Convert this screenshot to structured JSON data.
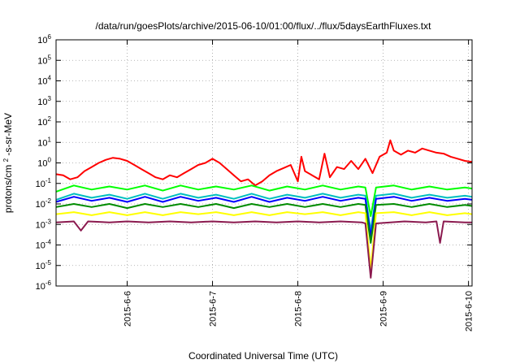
{
  "chart_data": {
    "type": "line",
    "title": "/data/run/goesPlots/archive/2015-06-10/01:00/flux/../flux/5daysEarthFluxes.txt",
    "xlabel": "Coordinated Universal Time (UTC)",
    "ylabel": "protons/cm²-s-sr-MeV",
    "ylabel_parts": [
      "protons/cm",
      "2",
      "-s-sr-MeV"
    ],
    "yscale": "log",
    "ylim_exponents": [
      -6,
      6
    ],
    "y_ticks": [
      {
        "base": "10",
        "exp": "6"
      },
      {
        "base": "10",
        "exp": "5"
      },
      {
        "base": "10",
        "exp": "4"
      },
      {
        "base": "10",
        "exp": "3"
      },
      {
        "base": "10",
        "exp": "2"
      },
      {
        "base": "10",
        "exp": "1"
      },
      {
        "base": "10",
        "exp": "0"
      },
      {
        "base": "10",
        "exp": "-1"
      },
      {
        "base": "10",
        "exp": "-2"
      },
      {
        "base": "10",
        "exp": "-3"
      },
      {
        "base": "10",
        "exp": "-4"
      },
      {
        "base": "10",
        "exp": "-5"
      },
      {
        "base": "10",
        "exp": "-6"
      }
    ],
    "xlim_days": [
      "2015-06-05 04:00",
      "2015-06-10 01:00"
    ],
    "x_ticks": [
      "2015-6-6",
      "2015-6-7",
      "2015-6-8",
      "2015-6-9",
      "2015-6-10"
    ],
    "grid": true,
    "series": [
      {
        "color": "#ff0000",
        "points": [
          [
            "2015-06-05 04:00",
            -0.55
          ],
          [
            "2015-06-05 06:00",
            -0.6
          ],
          [
            "2015-06-05 08:00",
            -0.8
          ],
          [
            "2015-06-05 10:00",
            -0.7
          ],
          [
            "2015-06-05 12:00",
            -0.4
          ],
          [
            "2015-06-05 14:00",
            -0.2
          ],
          [
            "2015-06-05 16:00",
            0.0
          ],
          [
            "2015-06-05 18:00",
            0.15
          ],
          [
            "2015-06-05 20:00",
            0.25
          ],
          [
            "2015-06-05 22:00",
            0.2
          ],
          [
            "2015-06-06 00:00",
            0.1
          ],
          [
            "2015-06-06 02:00",
            -0.1
          ],
          [
            "2015-06-06 04:00",
            -0.3
          ],
          [
            "2015-06-06 06:00",
            -0.5
          ],
          [
            "2015-06-06 08:00",
            -0.7
          ],
          [
            "2015-06-06 10:00",
            -0.8
          ],
          [
            "2015-06-06 12:00",
            -0.6
          ],
          [
            "2015-06-06 14:00",
            -0.7
          ],
          [
            "2015-06-06 16:00",
            -0.5
          ],
          [
            "2015-06-06 18:00",
            -0.3
          ],
          [
            "2015-06-06 20:00",
            -0.1
          ],
          [
            "2015-06-06 22:00",
            0.0
          ],
          [
            "2015-06-07 00:00",
            0.2
          ],
          [
            "2015-06-07 02:00",
            0.0
          ],
          [
            "2015-06-07 04:00",
            -0.3
          ],
          [
            "2015-06-07 06:00",
            -0.6
          ],
          [
            "2015-06-07 08:00",
            -0.9
          ],
          [
            "2015-06-07 10:00",
            -0.8
          ],
          [
            "2015-06-07 12:00",
            -1.1
          ],
          [
            "2015-06-07 14:00",
            -0.9
          ],
          [
            "2015-06-07 16:00",
            -0.6
          ],
          [
            "2015-06-07 18:00",
            -0.4
          ],
          [
            "2015-06-07 20:00",
            -0.25
          ],
          [
            "2015-06-07 22:00",
            -0.1
          ],
          [
            "2015-06-08 00:00",
            -0.9
          ],
          [
            "2015-06-08 01:00",
            0.3
          ],
          [
            "2015-06-08 02:00",
            -0.4
          ],
          [
            "2015-06-08 04:00",
            -0.6
          ],
          [
            "2015-06-08 06:00",
            -0.8
          ],
          [
            "2015-06-08 07:30",
            0.45
          ],
          [
            "2015-06-08 09:00",
            -0.7
          ],
          [
            "2015-06-08 11:00",
            -0.2
          ],
          [
            "2015-06-08 13:00",
            -0.3
          ],
          [
            "2015-06-08 15:00",
            0.1
          ],
          [
            "2015-06-08 17:00",
            -0.3
          ],
          [
            "2015-06-08 19:00",
            0.2
          ],
          [
            "2015-06-08 21:00",
            -0.5
          ],
          [
            "2015-06-08 23:00",
            0.3
          ],
          [
            "2015-06-09 01:00",
            0.5
          ],
          [
            "2015-06-09 02:00",
            1.1
          ],
          [
            "2015-06-09 03:00",
            0.6
          ],
          [
            "2015-06-09 05:00",
            0.4
          ],
          [
            "2015-06-09 07:00",
            0.6
          ],
          [
            "2015-06-09 09:00",
            0.5
          ],
          [
            "2015-06-09 11:00",
            0.7
          ],
          [
            "2015-06-09 13:00",
            0.6
          ],
          [
            "2015-06-09 15:00",
            0.5
          ],
          [
            "2015-06-09 17:00",
            0.45
          ],
          [
            "2015-06-09 19:00",
            0.3
          ],
          [
            "2015-06-09 21:00",
            0.2
          ],
          [
            "2015-06-09 23:00",
            0.1
          ],
          [
            "2015-06-10 01:00",
            0.05
          ]
        ]
      },
      {
        "color": "#00ff00",
        "points": [
          [
            "2015-06-05 04:00",
            -1.4
          ],
          [
            "2015-06-05 09:00",
            -1.1
          ],
          [
            "2015-06-05 14:00",
            -1.3
          ],
          [
            "2015-06-05 19:00",
            -1.15
          ],
          [
            "2015-06-06 00:00",
            -1.3
          ],
          [
            "2015-06-06 05:00",
            -1.1
          ],
          [
            "2015-06-06 10:00",
            -1.35
          ],
          [
            "2015-06-06 15:00",
            -1.1
          ],
          [
            "2015-06-06 20:00",
            -1.3
          ],
          [
            "2015-06-07 01:00",
            -1.15
          ],
          [
            "2015-06-07 06:00",
            -1.3
          ],
          [
            "2015-06-07 11:00",
            -1.1
          ],
          [
            "2015-06-07 16:00",
            -1.35
          ],
          [
            "2015-06-07 21:00",
            -1.15
          ],
          [
            "2015-06-08 02:00",
            -1.3
          ],
          [
            "2015-06-08 07:00",
            -1.1
          ],
          [
            "2015-06-08 12:00",
            -1.3
          ],
          [
            "2015-06-08 17:00",
            -1.15
          ],
          [
            "2015-06-08 19:00",
            -1.2
          ],
          [
            "2015-06-08 20:30",
            -2.6
          ],
          [
            "2015-06-08 22:00",
            -1.2
          ],
          [
            "2015-06-09 03:00",
            -1.1
          ],
          [
            "2015-06-09 08:00",
            -1.3
          ],
          [
            "2015-06-09 13:00",
            -1.15
          ],
          [
            "2015-06-09 18:00",
            -1.3
          ],
          [
            "2015-06-09 23:00",
            -1.2
          ],
          [
            "2015-06-10 01:00",
            -1.25
          ]
        ]
      },
      {
        "color": "#00bfbf",
        "points": [
          [
            "2015-06-05 04:00",
            -1.8
          ],
          [
            "2015-06-05 09:00",
            -1.5
          ],
          [
            "2015-06-05 14:00",
            -1.7
          ],
          [
            "2015-06-05 19:00",
            -1.55
          ],
          [
            "2015-06-06 00:00",
            -1.75
          ],
          [
            "2015-06-06 05:00",
            -1.5
          ],
          [
            "2015-06-06 10:00",
            -1.75
          ],
          [
            "2015-06-06 15:00",
            -1.5
          ],
          [
            "2015-06-06 20:00",
            -1.7
          ],
          [
            "2015-06-07 01:00",
            -1.55
          ],
          [
            "2015-06-07 06:00",
            -1.75
          ],
          [
            "2015-06-07 11:00",
            -1.5
          ],
          [
            "2015-06-07 16:00",
            -1.75
          ],
          [
            "2015-06-07 21:00",
            -1.55
          ],
          [
            "2015-06-08 02:00",
            -1.7
          ],
          [
            "2015-06-08 07:00",
            -1.5
          ],
          [
            "2015-06-08 12:00",
            -1.7
          ],
          [
            "2015-06-08 17:00",
            -1.55
          ],
          [
            "2015-06-08 19:00",
            -1.6
          ],
          [
            "2015-06-08 20:30",
            -3.3
          ],
          [
            "2015-06-08 22:00",
            -1.6
          ],
          [
            "2015-06-09 03:00",
            -1.5
          ],
          [
            "2015-06-09 08:00",
            -1.7
          ],
          [
            "2015-06-09 13:00",
            -1.55
          ],
          [
            "2015-06-09 18:00",
            -1.7
          ],
          [
            "2015-06-09 23:00",
            -1.6
          ],
          [
            "2015-06-10 01:00",
            -1.65
          ]
        ]
      },
      {
        "color": "#0000ff",
        "points": [
          [
            "2015-06-05 04:00",
            -1.9
          ],
          [
            "2015-06-05 09:00",
            -1.65
          ],
          [
            "2015-06-05 14:00",
            -1.85
          ],
          [
            "2015-06-05 19:00",
            -1.7
          ],
          [
            "2015-06-06 00:00",
            -1.9
          ],
          [
            "2015-06-06 05:00",
            -1.65
          ],
          [
            "2015-06-06 10:00",
            -1.9
          ],
          [
            "2015-06-06 15:00",
            -1.65
          ],
          [
            "2015-06-06 20:00",
            -1.85
          ],
          [
            "2015-06-07 01:00",
            -1.7
          ],
          [
            "2015-06-07 06:00",
            -1.9
          ],
          [
            "2015-06-07 11:00",
            -1.65
          ],
          [
            "2015-06-07 16:00",
            -1.9
          ],
          [
            "2015-06-07 21:00",
            -1.7
          ],
          [
            "2015-06-08 02:00",
            -1.85
          ],
          [
            "2015-06-08 07:00",
            -1.65
          ],
          [
            "2015-06-08 12:00",
            -1.85
          ],
          [
            "2015-06-08 17:00",
            -1.7
          ],
          [
            "2015-06-08 19:00",
            -1.75
          ],
          [
            "2015-06-08 20:30",
            -3.6
          ],
          [
            "2015-06-08 22:00",
            -1.75
          ],
          [
            "2015-06-09 03:00",
            -1.65
          ],
          [
            "2015-06-09 08:00",
            -1.85
          ],
          [
            "2015-06-09 13:00",
            -1.7
          ],
          [
            "2015-06-09 18:00",
            -1.85
          ],
          [
            "2015-06-09 23:00",
            -1.75
          ],
          [
            "2015-06-10 01:00",
            -1.8
          ]
        ]
      },
      {
        "color": "#008c00",
        "points": [
          [
            "2015-06-05 04:00",
            -2.15
          ],
          [
            "2015-06-05 09:00",
            -2.0
          ],
          [
            "2015-06-05 14:00",
            -2.15
          ],
          [
            "2015-06-05 19:00",
            -2.0
          ],
          [
            "2015-06-06 00:00",
            -2.2
          ],
          [
            "2015-06-06 05:00",
            -2.0
          ],
          [
            "2015-06-06 10:00",
            -2.15
          ],
          [
            "2015-06-06 15:00",
            -2.0
          ],
          [
            "2015-06-06 20:00",
            -2.15
          ],
          [
            "2015-06-07 01:00",
            -2.0
          ],
          [
            "2015-06-07 06:00",
            -2.2
          ],
          [
            "2015-06-07 11:00",
            -2.0
          ],
          [
            "2015-06-07 16:00",
            -2.15
          ],
          [
            "2015-06-07 21:00",
            -2.0
          ],
          [
            "2015-06-08 02:00",
            -2.15
          ],
          [
            "2015-06-08 07:00",
            -2.0
          ],
          [
            "2015-06-08 12:00",
            -2.15
          ],
          [
            "2015-06-08 17:00",
            -2.0
          ],
          [
            "2015-06-08 19:00",
            -2.05
          ],
          [
            "2015-06-08 20:30",
            -3.9
          ],
          [
            "2015-06-08 22:00",
            -2.05
          ],
          [
            "2015-06-09 03:00",
            -2.0
          ],
          [
            "2015-06-09 08:00",
            -2.15
          ],
          [
            "2015-06-09 13:00",
            -2.0
          ],
          [
            "2015-06-09 18:00",
            -2.15
          ],
          [
            "2015-06-09 23:00",
            -2.05
          ],
          [
            "2015-06-10 01:00",
            -2.1
          ]
        ]
      },
      {
        "color": "#ffff00",
        "points": [
          [
            "2015-06-05 04:00",
            -2.5
          ],
          [
            "2015-06-05 09:00",
            -2.4
          ],
          [
            "2015-06-05 14:00",
            -2.55
          ],
          [
            "2015-06-05 19:00",
            -2.4
          ],
          [
            "2015-06-06 00:00",
            -2.55
          ],
          [
            "2015-06-06 05:00",
            -2.4
          ],
          [
            "2015-06-06 10:00",
            -2.55
          ],
          [
            "2015-06-06 15:00",
            -2.4
          ],
          [
            "2015-06-06 20:00",
            -2.5
          ],
          [
            "2015-06-07 01:00",
            -2.4
          ],
          [
            "2015-06-07 06:00",
            -2.55
          ],
          [
            "2015-06-07 11:00",
            -2.4
          ],
          [
            "2015-06-07 16:00",
            -2.55
          ],
          [
            "2015-06-07 21:00",
            -2.4
          ],
          [
            "2015-06-08 02:00",
            -2.5
          ],
          [
            "2015-06-08 07:00",
            -2.4
          ],
          [
            "2015-06-08 12:00",
            -2.55
          ],
          [
            "2015-06-08 17:00",
            -2.4
          ],
          [
            "2015-06-08 19:00",
            -2.45
          ],
          [
            "2015-06-08 20:30",
            -5.2
          ],
          [
            "2015-06-08 22:00",
            -2.45
          ],
          [
            "2015-06-09 03:00",
            -2.4
          ],
          [
            "2015-06-09 08:00",
            -2.55
          ],
          [
            "2015-06-09 13:00",
            -2.4
          ],
          [
            "2015-06-09 18:00",
            -2.55
          ],
          [
            "2015-06-09 23:00",
            -2.45
          ],
          [
            "2015-06-10 01:00",
            -2.5
          ]
        ]
      },
      {
        "color": "#8b1a4f",
        "points": [
          [
            "2015-06-05 04:00",
            -2.9
          ],
          [
            "2015-06-05 09:00",
            -2.85
          ],
          [
            "2015-06-05 11:00",
            -3.3
          ],
          [
            "2015-06-05 13:00",
            -2.85
          ],
          [
            "2015-06-05 19:00",
            -2.9
          ],
          [
            "2015-06-06 00:00",
            -2.85
          ],
          [
            "2015-06-06 06:00",
            -2.9
          ],
          [
            "2015-06-06 12:00",
            -2.85
          ],
          [
            "2015-06-06 18:00",
            -2.9
          ],
          [
            "2015-06-07 00:00",
            -2.85
          ],
          [
            "2015-06-07 06:00",
            -2.9
          ],
          [
            "2015-06-07 12:00",
            -2.85
          ],
          [
            "2015-06-07 18:00",
            -2.9
          ],
          [
            "2015-06-08 00:00",
            -2.85
          ],
          [
            "2015-06-08 06:00",
            -2.9
          ],
          [
            "2015-06-08 12:00",
            -2.85
          ],
          [
            "2015-06-08 18:00",
            -2.9
          ],
          [
            "2015-06-08 19:00",
            -2.95
          ],
          [
            "2015-06-08 20:30",
            -5.6
          ],
          [
            "2015-06-08 22:00",
            -2.95
          ],
          [
            "2015-06-09 06:00",
            -2.85
          ],
          [
            "2015-06-09 12:00",
            -2.9
          ],
          [
            "2015-06-09 15:00",
            -2.85
          ],
          [
            "2015-06-09 16:00",
            -3.9
          ],
          [
            "2015-06-09 17:00",
            -2.85
          ],
          [
            "2015-06-09 23:00",
            -2.9
          ],
          [
            "2015-06-10 01:00",
            -2.9
          ]
        ]
      }
    ]
  }
}
